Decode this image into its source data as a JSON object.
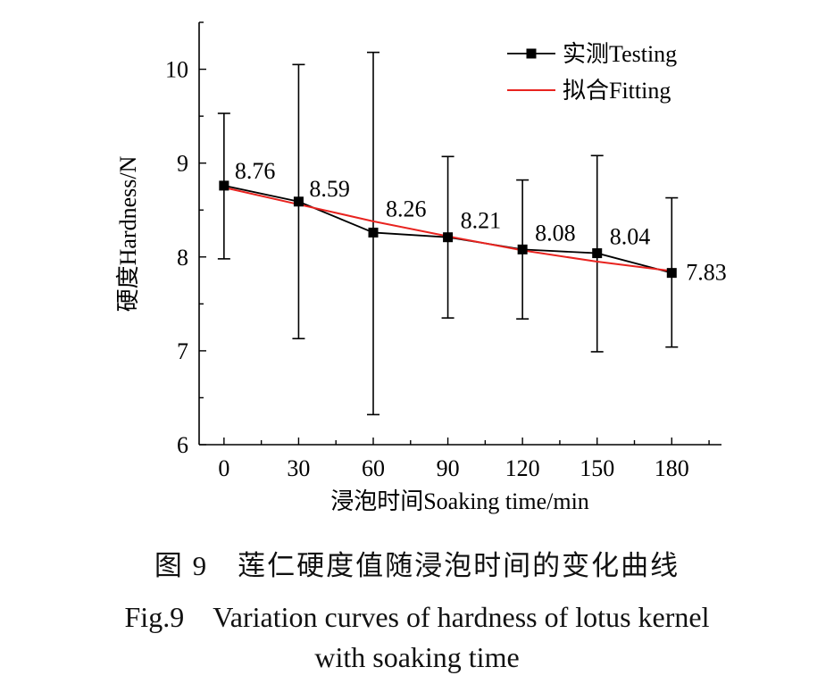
{
  "chart_data": {
    "type": "line",
    "xlabel": "浸泡时间Soaking time/min",
    "ylabel": "硬度Hardness/N",
    "xlim": [
      -10,
      200
    ],
    "ylim": [
      6,
      10.5
    ],
    "xticks": [
      0,
      30,
      60,
      90,
      120,
      150,
      180
    ],
    "yticks": [
      6,
      7,
      8,
      9,
      10
    ],
    "grid": false,
    "legend_position": "top-right",
    "series": [
      {
        "name": "实测Testing",
        "color": "#000000",
        "marker": "square",
        "x": [
          0,
          30,
          60,
          90,
          120,
          150,
          180
        ],
        "values": [
          8.76,
          8.59,
          8.26,
          8.21,
          8.08,
          8.04,
          7.83
        ],
        "labels": [
          "8.76",
          "8.59",
          "8.26",
          "8.21",
          "8.08",
          "8.04",
          "7.83"
        ],
        "error_upper": [
          9.53,
          10.05,
          10.18,
          9.07,
          8.82,
          9.08,
          8.63
        ],
        "error_lower": [
          7.98,
          7.13,
          6.32,
          7.35,
          7.34,
          6.99,
          7.04
        ]
      },
      {
        "name": "拟合Fitting",
        "color": "#e8231f",
        "x": [
          0,
          30,
          60,
          90,
          120,
          150,
          180
        ],
        "values": [
          8.74,
          8.56,
          8.38,
          8.22,
          8.07,
          7.95,
          7.85
        ]
      }
    ]
  },
  "caption": {
    "cn": "图 9　莲仁硬度值随浸泡时间的变化曲线",
    "en1": "Fig.9　Variation curves of hardness of lotus kernel",
    "en2": "with soaking time"
  }
}
